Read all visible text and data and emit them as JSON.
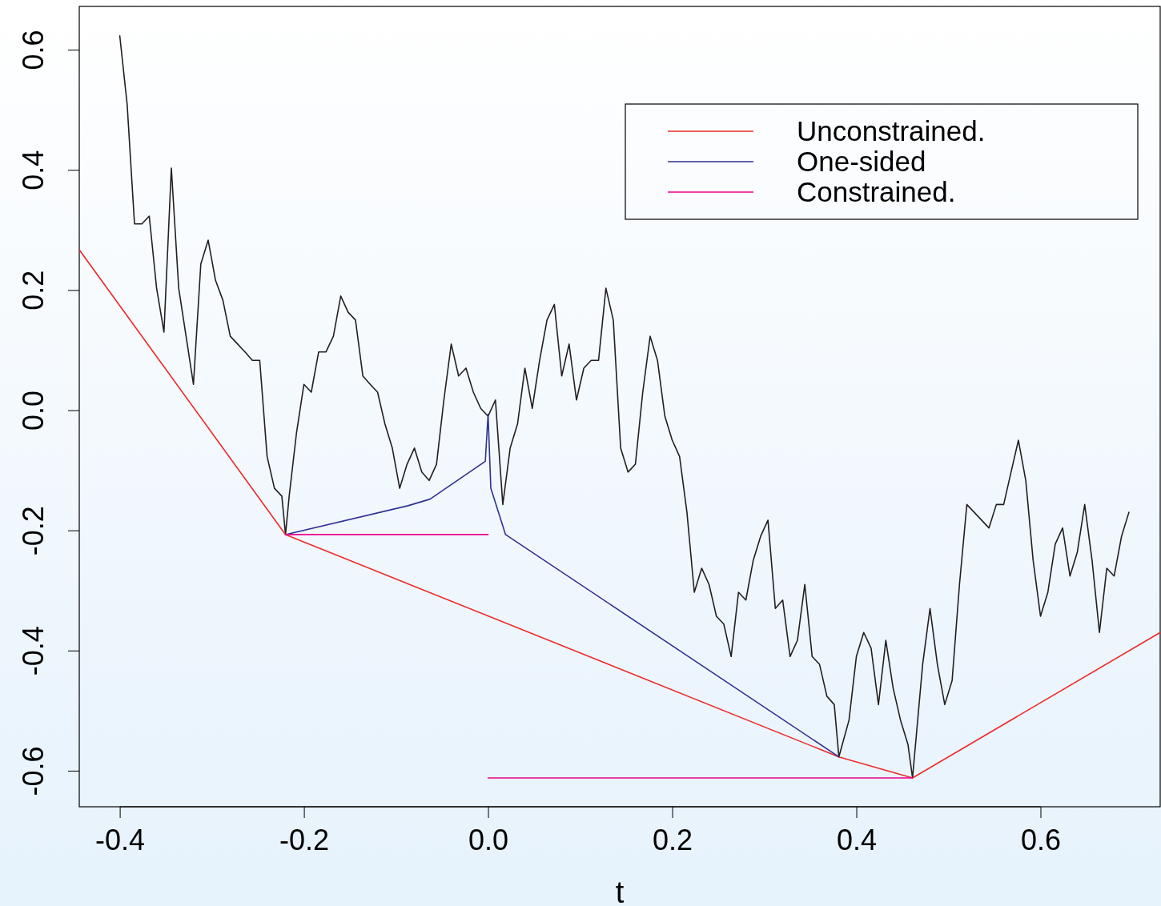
{
  "chart_data": {
    "type": "line",
    "xlabel": "t",
    "xlim": [
      -0.444,
      0.73
    ],
    "ylim": [
      -0.66,
      0.672
    ],
    "xticks": [
      {
        "value": -0.4,
        "label": "-0.4"
      },
      {
        "value": -0.2,
        "label": "-0.2"
      },
      {
        "value": 0,
        "label": "0.0"
      },
      {
        "value": 0.2,
        "label": "0.2"
      },
      {
        "value": 0.4,
        "label": "0.4"
      },
      {
        "value": 0.6,
        "label": "0.6"
      }
    ],
    "yticks": [
      {
        "value": -0.6,
        "label": "-0.6"
      },
      {
        "value": -0.4,
        "label": "-0.4"
      },
      {
        "value": -0.2,
        "label": "-0.2"
      },
      {
        "value": 0,
        "label": "0.0"
      },
      {
        "value": 0.2,
        "label": "0.2"
      },
      {
        "value": 0.4,
        "label": "0.4"
      },
      {
        "value": 0.6,
        "label": "0.6"
      }
    ],
    "grid": false,
    "legend": "top right",
    "marker": "none",
    "line_style": "solid",
    "series": [
      {
        "color": "#231f20",
        "x": [
          -0.4,
          -0.392,
          -0.384,
          -0.376,
          -0.368,
          -0.36,
          -0.352,
          -0.344,
          -0.336,
          -0.328,
          -0.32,
          -0.312,
          -0.304,
          -0.296,
          -0.288,
          -0.28,
          -0.272,
          -0.264,
          -0.256,
          -0.248,
          -0.24,
          -0.232,
          -0.224,
          -0.22,
          -0.216,
          -0.208,
          -0.2,
          -0.192,
          -0.184,
          -0.176,
          -0.168,
          -0.16,
          -0.152,
          -0.144,
          -0.136,
          -0.128,
          -0.12,
          -0.112,
          -0.104,
          -0.096,
          -0.088,
          -0.08,
          -0.072,
          -0.064,
          -0.056,
          -0.048,
          -0.04,
          -0.032,
          -0.024,
          -0.016,
          -0.008,
          0,
          0.008,
          0.016,
          0.024,
          0.032,
          0.04,
          0.048,
          0.056,
          0.064,
          0.072,
          0.08,
          0.088,
          0.096,
          0.104,
          0.112,
          0.12,
          0.128,
          0.136,
          0.144,
          0.152,
          0.16,
          0.168,
          0.176,
          0.184,
          0.192,
          0.2,
          0.208,
          0.216,
          0.224,
          0.232,
          0.24,
          0.248,
          0.256,
          0.264,
          0.272,
          0.28,
          0.288,
          0.296,
          0.304,
          0.312,
          0.32,
          0.328,
          0.336,
          0.344,
          0.352,
          0.36,
          0.368,
          0.376,
          0.381,
          0.392,
          0.4,
          0.408,
          0.416,
          0.424,
          0.432,
          0.44,
          0.448,
          0.456,
          0.461,
          0.472,
          0.48,
          0.488,
          0.496,
          0.504,
          0.512,
          0.52,
          0.528,
          0.536,
          0.544,
          0.552,
          0.56,
          0.568,
          0.576,
          0.584,
          0.592,
          0.6,
          0.608,
          0.616,
          0.624,
          0.632,
          0.64,
          0.648,
          0.656,
          0.664,
          0.672,
          0.68,
          0.688,
          0.696
        ],
        "values": [
          0.623,
          0.509,
          0.31,
          0.31,
          0.323,
          0.203,
          0.13,
          0.403,
          0.203,
          0.123,
          0.043,
          0.243,
          0.283,
          0.216,
          0.183,
          0.123,
          0.11,
          0.097,
          0.083,
          0.083,
          -0.077,
          -0.13,
          -0.143,
          -0.207,
          -0.143,
          -0.037,
          0.043,
          0.03,
          0.097,
          0.097,
          0.123,
          0.19,
          0.163,
          0.15,
          0.057,
          0.043,
          0.03,
          -0.023,
          -0.063,
          -0.13,
          -0.09,
          -0.063,
          -0.103,
          -0.117,
          -0.09,
          0.017,
          0.11,
          0.057,
          0.07,
          0.03,
          0.003,
          -0.01,
          0.017,
          -0.157,
          -0.063,
          -0.023,
          0.07,
          0.003,
          0.083,
          0.15,
          0.176,
          0.057,
          0.11,
          0.017,
          0.07,
          0.083,
          0.083,
          0.203,
          0.15,
          -0.063,
          -0.103,
          -0.09,
          0.03,
          0.123,
          0.083,
          -0.01,
          -0.05,
          -0.077,
          -0.17,
          -0.303,
          -0.263,
          -0.29,
          -0.343,
          -0.356,
          -0.41,
          -0.303,
          -0.316,
          -0.25,
          -0.21,
          -0.183,
          -0.33,
          -0.316,
          -0.41,
          -0.383,
          -0.29,
          -0.41,
          -0.423,
          -0.476,
          -0.49,
          -0.577,
          -0.516,
          -0.41,
          -0.37,
          -0.396,
          -0.49,
          -0.383,
          -0.463,
          -0.516,
          -0.556,
          -0.612,
          -0.423,
          -0.33,
          -0.423,
          -0.49,
          -0.45,
          -0.29,
          -0.157,
          -0.17,
          -0.183,
          -0.196,
          -0.157,
          -0.157,
          -0.103,
          -0.05,
          -0.117,
          -0.25,
          -0.343,
          -0.303,
          -0.223,
          -0.196,
          -0.276,
          -0.236,
          -0.157,
          -0.25,
          -0.37,
          -0.263,
          -0.276,
          -0.21,
          -0.17
        ]
      },
      {
        "name": "Unconstrained.",
        "color": "#ee2a2a",
        "x": [
          -0.444,
          -0.22,
          0.381,
          0.461,
          0.73
        ],
        "values": [
          0.267,
          -0.207,
          -0.577,
          -0.612,
          -0.37
        ]
      },
      {
        "name": "One-sided",
        "color": "#2e3192",
        "x": [
          -0.22,
          -0.087,
          -0.063,
          -0.003,
          0,
          0.003,
          0.019,
          0.381
        ],
        "values": [
          -0.207,
          -0.159,
          -0.148,
          -0.085,
          -0.007,
          -0.13,
          -0.207,
          -0.577
        ]
      },
      {
        "name": "Constrained.",
        "color": "#ec008c",
        "x": [
          -0.22,
          0,
          null,
          0,
          0.461
        ],
        "values": [
          -0.207,
          -0.207,
          null,
          -0.612,
          -0.612
        ]
      }
    ]
  }
}
